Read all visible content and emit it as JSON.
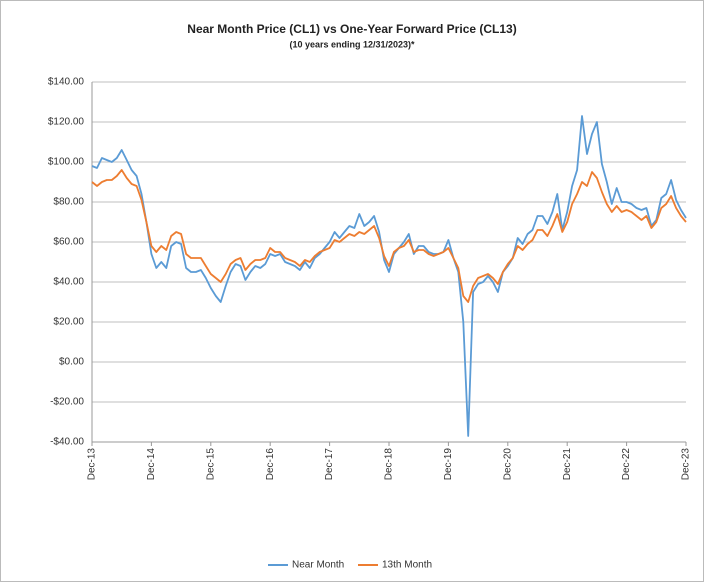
{
  "chart_data": {
    "type": "line",
    "title": "Near Month Price (CL1) vs One-Year Forward Price (CL13)",
    "subtitle": "(10 years ending 12/31/2023)*",
    "categories": [
      "Dec-13",
      null,
      null,
      null,
      null,
      null,
      null,
      null,
      null,
      null,
      null,
      null,
      "Dec-14",
      null,
      null,
      null,
      null,
      null,
      null,
      null,
      null,
      null,
      null,
      null,
      "Dec-15",
      null,
      null,
      null,
      null,
      null,
      null,
      null,
      null,
      null,
      null,
      null,
      "Dec-16",
      null,
      null,
      null,
      null,
      null,
      null,
      null,
      null,
      null,
      null,
      null,
      "Dec-17",
      null,
      null,
      null,
      null,
      null,
      null,
      null,
      null,
      null,
      null,
      null,
      "Dec-18",
      null,
      null,
      null,
      null,
      null,
      null,
      null,
      null,
      null,
      null,
      null,
      "Dec-19",
      null,
      null,
      null,
      null,
      null,
      null,
      null,
      null,
      null,
      null,
      null,
      "Dec-20",
      null,
      null,
      null,
      null,
      null,
      null,
      null,
      null,
      null,
      null,
      null,
      "Dec-21",
      null,
      null,
      null,
      null,
      null,
      null,
      null,
      null,
      null,
      null,
      null,
      "Dec-22",
      null,
      null,
      null,
      null,
      null,
      null,
      null,
      null,
      null,
      null,
      null,
      "Dec-23"
    ],
    "series": [
      {
        "name": "Near Month",
        "color": "#5b9bd5",
        "values": [
          98,
          97,
          102,
          101,
          100,
          102,
          106,
          101,
          96,
          93,
          84,
          70,
          54,
          47,
          50,
          47,
          58,
          60,
          59,
          47,
          45,
          45,
          46,
          42,
          37,
          33,
          30,
          38,
          45,
          49,
          48,
          41,
          45,
          48,
          47,
          49,
          54,
          53,
          54,
          50,
          49,
          48,
          46,
          50,
          47,
          52,
          54,
          57,
          60,
          65,
          62,
          65,
          68,
          67,
          74,
          68,
          70,
          73,
          65,
          51,
          45,
          54,
          57,
          60,
          64,
          54,
          58,
          58,
          55,
          54,
          54,
          55,
          61,
          52,
          45,
          20,
          -37,
          35,
          39,
          40,
          43,
          40,
          35,
          45,
          48,
          52,
          62,
          59,
          64,
          66,
          73,
          73,
          69,
          75,
          84,
          66,
          75,
          88,
          96,
          123,
          104,
          114,
          120,
          99,
          90,
          79,
          87,
          80,
          80,
          79,
          77,
          76,
          77,
          68,
          71,
          82,
          84,
          91,
          81,
          76,
          72
        ]
      },
      {
        "name": "13th Month",
        "color": "#ed7d31",
        "values": [
          90,
          88,
          90,
          91,
          91,
          93,
          96,
          92,
          89,
          88,
          81,
          70,
          58,
          55,
          58,
          56,
          63,
          65,
          64,
          54,
          52,
          52,
          52,
          48,
          44,
          42,
          40,
          44,
          49,
          51,
          52,
          46,
          49,
          51,
          51,
          52,
          57,
          55,
          55,
          52,
          51,
          50,
          48,
          51,
          50,
          53,
          55,
          56,
          57,
          61,
          60,
          62,
          64,
          63,
          65,
          64,
          66,
          68,
          62,
          53,
          48,
          55,
          57,
          58,
          61,
          55,
          56,
          56,
          54,
          53,
          54,
          55,
          57,
          52,
          47,
          33,
          30,
          38,
          42,
          43,
          44,
          42,
          39,
          45,
          49,
          52,
          58,
          56,
          59,
          61,
          66,
          66,
          63,
          68,
          74,
          65,
          70,
          79,
          84,
          90,
          88,
          95,
          92,
          85,
          79,
          75,
          78,
          75,
          76,
          75,
          73,
          71,
          73,
          67,
          70,
          77,
          79,
          83,
          77,
          73,
          70
        ]
      }
    ],
    "ylim": [
      -40,
      140
    ],
    "yticks": [
      {
        "value": -40,
        "label": "-$40.00"
      },
      {
        "value": -20,
        "label": "-$20.00"
      },
      {
        "value": 0,
        "label": "$0.00"
      },
      {
        "value": 20,
        "label": "$20.00"
      },
      {
        "value": 40,
        "label": "$40.00"
      },
      {
        "value": 60,
        "label": "$60.00"
      },
      {
        "value": 80,
        "label": "$80.00"
      },
      {
        "value": 100,
        "label": "$100.00"
      },
      {
        "value": 120,
        "label": "$120.00"
      },
      {
        "value": 140,
        "label": "$140.00"
      }
    ],
    "grid": true,
    "legend": "bottom"
  }
}
